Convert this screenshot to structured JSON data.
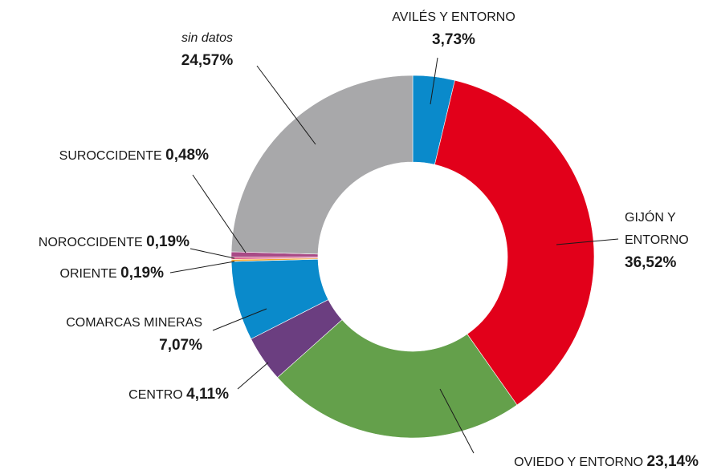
{
  "chart_data": {
    "type": "donut",
    "categories": [
      "AVILÉS Y ENTORNO",
      "GIJÓN Y ENTORNO",
      "OVIEDO Y ENTORNO",
      "CENTRO",
      "COMARCAS MINERAS",
      "ORIENTE",
      "NOROCCIDENTE",
      "SUROCCIDENTE",
      "sin datos"
    ],
    "values": [
      3.73,
      36.52,
      23.14,
      4.11,
      7.07,
      0.19,
      0.19,
      0.48,
      24.57
    ],
    "value_labels": [
      "3,73%",
      "36,52%",
      "23,14%",
      "4,11%",
      "7,07%",
      "0,19%",
      "0,19%",
      "0,48%",
      "24,57%"
    ],
    "colors": [
      "#0a8acb",
      "#e2001a",
      "#64a04b",
      "#6b3e80",
      "#0a8acb",
      "#f2a531",
      "#e0668f",
      "#a84a86",
      "#a8a8aa"
    ]
  }
}
